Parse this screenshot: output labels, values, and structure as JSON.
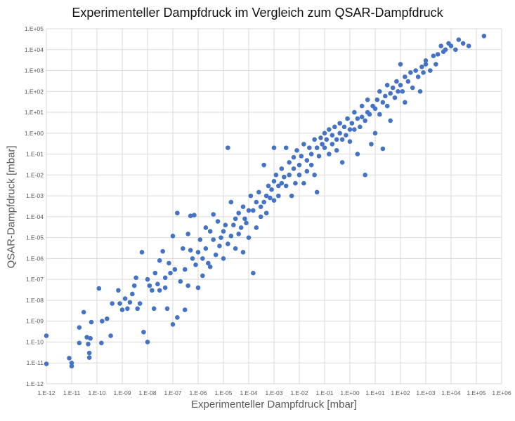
{
  "chart_data": {
    "type": "scatter",
    "title": "Experimenteller Dampfdruck im Vergleich zum QSAR-Dampfdruck",
    "xlabel": "Experimenteller Dampfdruck [mbar]",
    "ylabel": "QSAR-Dampfdruck [mbar]",
    "x_scale": "log",
    "y_scale": "log",
    "xlim": [
      1e-12,
      1000000.0
    ],
    "ylim": [
      1e-12,
      100000.0
    ],
    "x_tick_labels": [
      "1.E-12",
      "1.E-11",
      "1.E-10",
      "1.E-09",
      "1.E-08",
      "1.E-07",
      "1.E-06",
      "1.E-05",
      "1.E-04",
      "1.E-03",
      "1.E-02",
      "1.E-01",
      "1.E+00",
      "1.E+01",
      "1.E+02",
      "1.E+03",
      "1.E+04",
      "1.E+05",
      "1.E+06"
    ],
    "y_tick_labels": [
      "1.E-12",
      "1.E-11",
      "1.E-10",
      "1.E-09",
      "1.E-08",
      "1.E-07",
      "1.E-06",
      "1.E-05",
      "1.E-04",
      "1.E-03",
      "1.E-02",
      "1.E-01",
      "1.E+00",
      "1.E+01",
      "1.E+02",
      "1.E+03",
      "1.E+04",
      "1.E+05"
    ],
    "grid": true,
    "legend": "none",
    "marker_color": "#4472C4",
    "points": [
      [
        1e-12,
        2e-10
      ],
      [
        1e-12,
        9e-12
      ],
      [
        8e-12,
        1.7e-11
      ],
      [
        1e-11,
        7e-12
      ],
      [
        1e-11,
        1e-11
      ],
      [
        2e-11,
        9e-11
      ],
      [
        2e-11,
        5e-10
      ],
      [
        3e-11,
        2.7e-09
      ],
      [
        4e-11,
        1.7e-10
      ],
      [
        4.5e-11,
        8e-11
      ],
      [
        5e-11,
        3e-11
      ],
      [
        5e-11,
        1.8e-11
      ],
      [
        5.5e-11,
        1.5e-10
      ],
      [
        6e-11,
        9e-10
      ],
      [
        1.2e-10,
        3.7e-08
      ],
      [
        1.5e-10,
        9e-11
      ],
      [
        1.6e-10,
        1e-09
      ],
      [
        2.5e-10,
        1.3e-09
      ],
      [
        3.5e-10,
        2e-10
      ],
      [
        4e-10,
        7e-09
      ],
      [
        7e-10,
        3e-08
      ],
      [
        8e-10,
        7e-09
      ],
      [
        1e-09,
        3.5e-09
      ],
      [
        1.3e-09,
        1.2e-08
      ],
      [
        1.6e-09,
        4e-09
      ],
      [
        2e-09,
        8e-09
      ],
      [
        2.5e-09,
        2e-08
      ],
      [
        3e-09,
        5e-08
      ],
      [
        3.5e-09,
        1.2e-07
      ],
      [
        4e-09,
        4e-09
      ],
      [
        5e-09,
        7e-09
      ],
      [
        6e-09,
        2e-06
      ],
      [
        7e-09,
        3e-10
      ],
      [
        1e-08,
        1e-10
      ],
      [
        1e-08,
        1e-07
      ],
      [
        1.2e-08,
        5e-08
      ],
      [
        1.5e-08,
        3e-08
      ],
      [
        1.8e-08,
        4e-09
      ],
      [
        2e-08,
        2e-07
      ],
      [
        2.5e-08,
        6e-08
      ],
      [
        3e-08,
        8e-07
      ],
      [
        3e-08,
        3e-08
      ],
      [
        4e-08,
        2.2e-06
      ],
      [
        5e-08,
        1.2e-07
      ],
      [
        5e-08,
        4e-08
      ],
      [
        6e-08,
        4e-09
      ],
      [
        7e-08,
        6e-07
      ],
      [
        8e-08,
        2e-07
      ],
      [
        1e-07,
        1.2e-05
      ],
      [
        1e-07,
        7e-10
      ],
      [
        1.2e-07,
        3e-07
      ],
      [
        1.5e-07,
        0.00015
      ],
      [
        1.5e-07,
        1.5e-09
      ],
      [
        2e-07,
        8e-08
      ],
      [
        2.5e-07,
        3e-06
      ],
      [
        3e-07,
        3.5e-09
      ],
      [
        3e-07,
        3e-07
      ],
      [
        4e-07,
        1.5e-05
      ],
      [
        4e-07,
        5e-08
      ],
      [
        5e-07,
        0.00011
      ],
      [
        5e-07,
        2.5e-06
      ],
      [
        6e-07,
        1e-06
      ],
      [
        7e-07,
        0.00012
      ],
      [
        8e-07,
        5e-07
      ],
      [
        1e-06,
        2e-06
      ],
      [
        1e-06,
        4e-08
      ],
      [
        1.2e-06,
        8e-06
      ],
      [
        1.5e-06,
        1.5e-07
      ],
      [
        1.5e-06,
        1e-06
      ],
      [
        2e-06,
        3e-06
      ],
      [
        2e-06,
        3e-05
      ],
      [
        2.5e-06,
        6e-07
      ],
      [
        3e-06,
        2e-05
      ],
      [
        3e-06,
        4e-07
      ],
      [
        4e-06,
        0.00013
      ],
      [
        4e-06,
        8e-06
      ],
      [
        5e-06,
        1.5e-06
      ],
      [
        6e-06,
        6e-05
      ],
      [
        7e-06,
        4e-06
      ],
      [
        8e-06,
        1e-05
      ],
      [
        1e-05,
        2e-05
      ],
      [
        1e-05,
        1e-06
      ],
      [
        1.2e-05,
        4e-05
      ],
      [
        1.5e-05,
        0.2
      ],
      [
        1.5e-05,
        5e-06
      ],
      [
        2e-05,
        1.2e-05
      ],
      [
        2e-05,
        0.0005
      ],
      [
        2.5e-05,
        4e-05
      ],
      [
        3e-05,
        8e-05
      ],
      [
        3e-05,
        3e-06
      ],
      [
        4e-05,
        0.00015
      ],
      [
        4e-05,
        1.5e-05
      ],
      [
        5e-05,
        3e-05
      ],
      [
        6e-05,
        0.0003
      ],
      [
        6e-05,
        2e-06
      ],
      [
        7e-05,
        8e-05
      ],
      [
        8e-05,
        5e-05
      ],
      [
        0.0001,
        0.0002
      ],
      [
        0.0001,
        1e-05
      ],
      [
        0.00012,
        0.001
      ],
      [
        0.00015,
        0.0002
      ],
      [
        0.00015,
        2e-07
      ],
      [
        0.0002,
        0.0005
      ],
      [
        0.0002,
        3e-05
      ],
      [
        0.00025,
        0.0015
      ],
      [
        0.0003,
        0.0003
      ],
      [
        0.0003,
        0.0001
      ],
      [
        0.0004,
        0.03
      ],
      [
        0.0004,
        0.0005
      ],
      [
        0.0005,
        0.001
      ],
      [
        0.0005,
        0.00015
      ],
      [
        0.0006,
        0.003
      ],
      [
        0.0007,
        0.0008
      ],
      [
        0.0008,
        0.002
      ],
      [
        0.001,
        0.2
      ],
      [
        0.001,
        0.005
      ],
      [
        0.001,
        0.0006
      ],
      [
        0.0012,
        0.01
      ],
      [
        0.0015,
        0.003
      ],
      [
        0.0015,
        0.001
      ],
      [
        0.002,
        0.02
      ],
      [
        0.002,
        0.004
      ],
      [
        0.0025,
        0.008
      ],
      [
        0.003,
        0.2
      ],
      [
        0.003,
        0.003
      ],
      [
        0.004,
        0.04
      ],
      [
        0.004,
        0.01
      ],
      [
        0.005,
        0.001
      ],
      [
        0.006,
        0.07
      ],
      [
        0.006,
        0.02
      ],
      [
        0.007,
        0.004
      ],
      [
        0.008,
        0.15
      ],
      [
        0.01,
        0.03
      ],
      [
        0.01,
        0.01
      ],
      [
        0.012,
        0.08
      ],
      [
        0.015,
        0.3
      ],
      [
        0.015,
        0.004
      ],
      [
        0.02,
        0.05
      ],
      [
        0.02,
        0.015
      ],
      [
        0.025,
        0.2
      ],
      [
        0.03,
        0.1
      ],
      [
        0.03,
        0.03
      ],
      [
        0.04,
        0.5
      ],
      [
        0.04,
        0.01
      ],
      [
        0.05,
        0.2
      ],
      [
        0.05,
        0.0015
      ],
      [
        0.06,
        0.08
      ],
      [
        0.07,
        0.6
      ],
      [
        0.08,
        0.3
      ],
      [
        0.1,
        1
      ],
      [
        0.1,
        0.2
      ],
      [
        0.12,
        0.5
      ],
      [
        0.15,
        1.5
      ],
      [
        0.15,
        0.1
      ],
      [
        0.2,
        0.3
      ],
      [
        0.2,
        0.8
      ],
      [
        0.25,
        2
      ],
      [
        0.3,
        0.5
      ],
      [
        0.3,
        0.15
      ],
      [
        0.4,
        3
      ],
      [
        0.4,
        1
      ],
      [
        0.5,
        0.5
      ],
      [
        0.5,
        0.04
      ],
      [
        0.6,
        2
      ],
      [
        0.7,
        0.8
      ],
      [
        0.8,
        5
      ],
      [
        1,
        1.5
      ],
      [
        1,
        0.4
      ],
      [
        1.2,
        3
      ],
      [
        1.5,
        10
      ],
      [
        1.5,
        1.5
      ],
      [
        2,
        5
      ],
      [
        2,
        0.1
      ],
      [
        2.5,
        2
      ],
      [
        3,
        20
      ],
      [
        3,
        6
      ],
      [
        4,
        4
      ],
      [
        4,
        0.01
      ],
      [
        5,
        10
      ],
      [
        5,
        40
      ],
      [
        6,
        8
      ],
      [
        7,
        0.3
      ],
      [
        8,
        20
      ],
      [
        10,
        15
      ],
      [
        10,
        1
      ],
      [
        12,
        40
      ],
      [
        15,
        100
      ],
      [
        15,
        8
      ],
      [
        20,
        30
      ],
      [
        20,
        0.18
      ],
      [
        25,
        60
      ],
      [
        30,
        200
      ],
      [
        30,
        20
      ],
      [
        40,
        80
      ],
      [
        40,
        4
      ],
      [
        50,
        150
      ],
      [
        60,
        50
      ],
      [
        70,
        300
      ],
      [
        80,
        100
      ],
      [
        100,
        200
      ],
      [
        100,
        2000.0
      ],
      [
        120,
        100
      ],
      [
        150,
        500
      ],
      [
        150,
        30
      ],
      [
        200,
        300
      ],
      [
        250,
        800
      ],
      [
        300,
        150
      ],
      [
        400,
        1000.0
      ],
      [
        500,
        500
      ],
      [
        600,
        100
      ],
      [
        700,
        1500.0
      ],
      [
        800,
        800
      ],
      [
        1000.0,
        2000.0
      ],
      [
        1000.0,
        3000.0
      ],
      [
        1500.0,
        1000.0
      ],
      [
        2000.0,
        5000.0
      ],
      [
        2500.0,
        2000.0
      ],
      [
        3000.0,
        6000.0
      ],
      [
        4000.0,
        15000.0
      ],
      [
        5000.0,
        8000.0
      ],
      [
        6000.0,
        10000.0
      ],
      [
        8000.0,
        20000.0
      ],
      [
        10000.0,
        15000.0
      ],
      [
        15000.0,
        10000.0
      ],
      [
        20000.0,
        30000.0
      ],
      [
        30000.0,
        20000.0
      ],
      [
        50000.0,
        15000.0
      ],
      [
        200000.0,
        45000.0
      ]
    ]
  }
}
